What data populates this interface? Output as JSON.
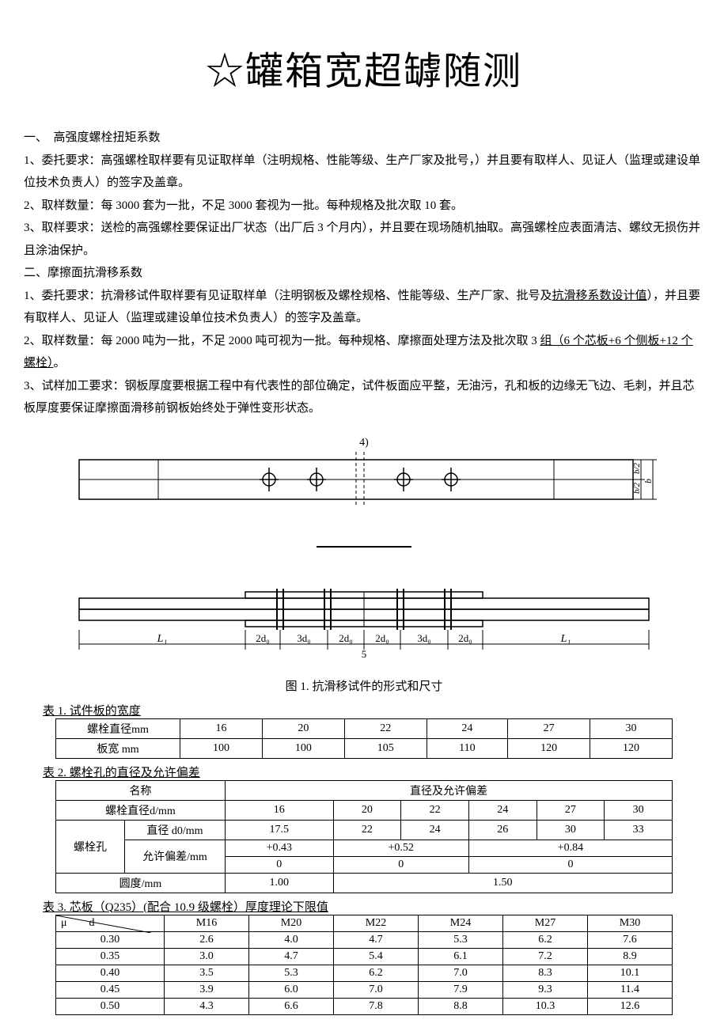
{
  "title": "☆罐箱宽超罅随测",
  "section1": {
    "heading": "一、　高强度螺栓扭矩系数",
    "p1": "1、委托要求：高强螺栓取样要有见证取样单（注明规格、性能等级、生产厂家及批号，）并且要有取样人、见证人（监理或建设单位技术负责人）的签字及盖章。",
    "p2": "2、取样数量：每 3000 套为一批，不足 3000 套视为一批。每种规格及批次取 10 套。",
    "p3": "3、取样要求：送检的高强螺栓要保证出厂状态（出厂后 3 个月内），并且要在现场随机抽取。高强螺栓应表面清洁、螺纹无损伤并且涂油保护。"
  },
  "section2": {
    "heading": "二、摩擦面抗滑移系数",
    "p1a": "1、委托要求：抗滑移试件取样要有见证取样单（注明钢板及螺栓规格、性能等级、生产厂家、批号及",
    "p1u": "抗滑移系数设计值",
    "p1b": "），并且要有取样人、见证人（监理或建设单位技术负责人）的签字及盖章。",
    "p2a": "2、取样数量：每 2000 吨为一批，不足 2000 吨可视为一批。每种规格、摩擦面处理方法及批次取 3 ",
    "p2u": "组（6 个芯板+6 个侧板+12 个螺栓）",
    "p2b": "。",
    "p3": "3、试样加工要求：钢板厚度要根据工程中有代表性的部位确定，试件板面应平整，无油污，孔和板的边缘无飞边、毛刺，并且芯板厚度要保证摩擦面滑移前钢板始终处于弹性变形状态。"
  },
  "fig_caption": "图 1. 抗滑移试件的形式和尺寸",
  "diagram": {
    "top_label": "4)",
    "dim_right": [
      "b/2",
      "b/2",
      "b"
    ],
    "dim_bottom": [
      "L₁",
      "2d₀",
      "3d₀",
      "2d₀",
      "2d₀",
      "3d₀",
      "2d₀",
      "L₁"
    ],
    "center_num": "5"
  },
  "table1": {
    "caption": "表 1. 试件板的宽度",
    "rows": [
      [
        "螺栓直径mm",
        "16",
        "20",
        "22",
        "24",
        "27",
        "30"
      ],
      [
        "板宽 mm",
        "100",
        "100",
        "105",
        "110",
        "120",
        "120"
      ]
    ]
  },
  "table2": {
    "caption": "表 2. 螺栓孔的直径及允许偏差",
    "h_name": "名称",
    "h_tol": "直径及允许偏差",
    "r_dia": [
      "螺栓直径d/mm",
      "16",
      "20",
      "22",
      "24",
      "27",
      "30"
    ],
    "r_hole_label": "螺栓孔",
    "r_d0": [
      "直径 d0/mm",
      "17.5",
      "22",
      "24",
      "26",
      "30",
      "33"
    ],
    "r_tol_label": "允许偏差/mm",
    "r_tol_1": [
      "+0.43",
      "+0.52",
      "+0.84"
    ],
    "r_tol_2": [
      "0",
      "0",
      "0"
    ],
    "r_round": [
      "圆度/mm",
      "1.00",
      "1.50"
    ]
  },
  "table3": {
    "caption": "表 3. 芯板（Q235）(配合 10.9 级螺栓）厚度理论下限值",
    "head": [
      "μ　　d",
      "M16",
      "M20",
      "M22",
      "M24",
      "M27",
      "M30"
    ],
    "rows": [
      [
        "0.30",
        "2.6",
        "4.0",
        "4.7",
        "5.3",
        "6.2",
        "7.6"
      ],
      [
        "0.35",
        "3.0",
        "4.7",
        "5.4",
        "6.1",
        "7.2",
        "8.9"
      ],
      [
        "0.40",
        "3.5",
        "5.3",
        "6.2",
        "7.0",
        "8.3",
        "10.1"
      ],
      [
        "0.45",
        "3.9",
        "6.0",
        "7.0",
        "7.9",
        "9.3",
        "11.4"
      ],
      [
        "0.50",
        "4.3",
        "6.6",
        "7.8",
        "8.8",
        "10.3",
        "12.6"
      ]
    ]
  }
}
